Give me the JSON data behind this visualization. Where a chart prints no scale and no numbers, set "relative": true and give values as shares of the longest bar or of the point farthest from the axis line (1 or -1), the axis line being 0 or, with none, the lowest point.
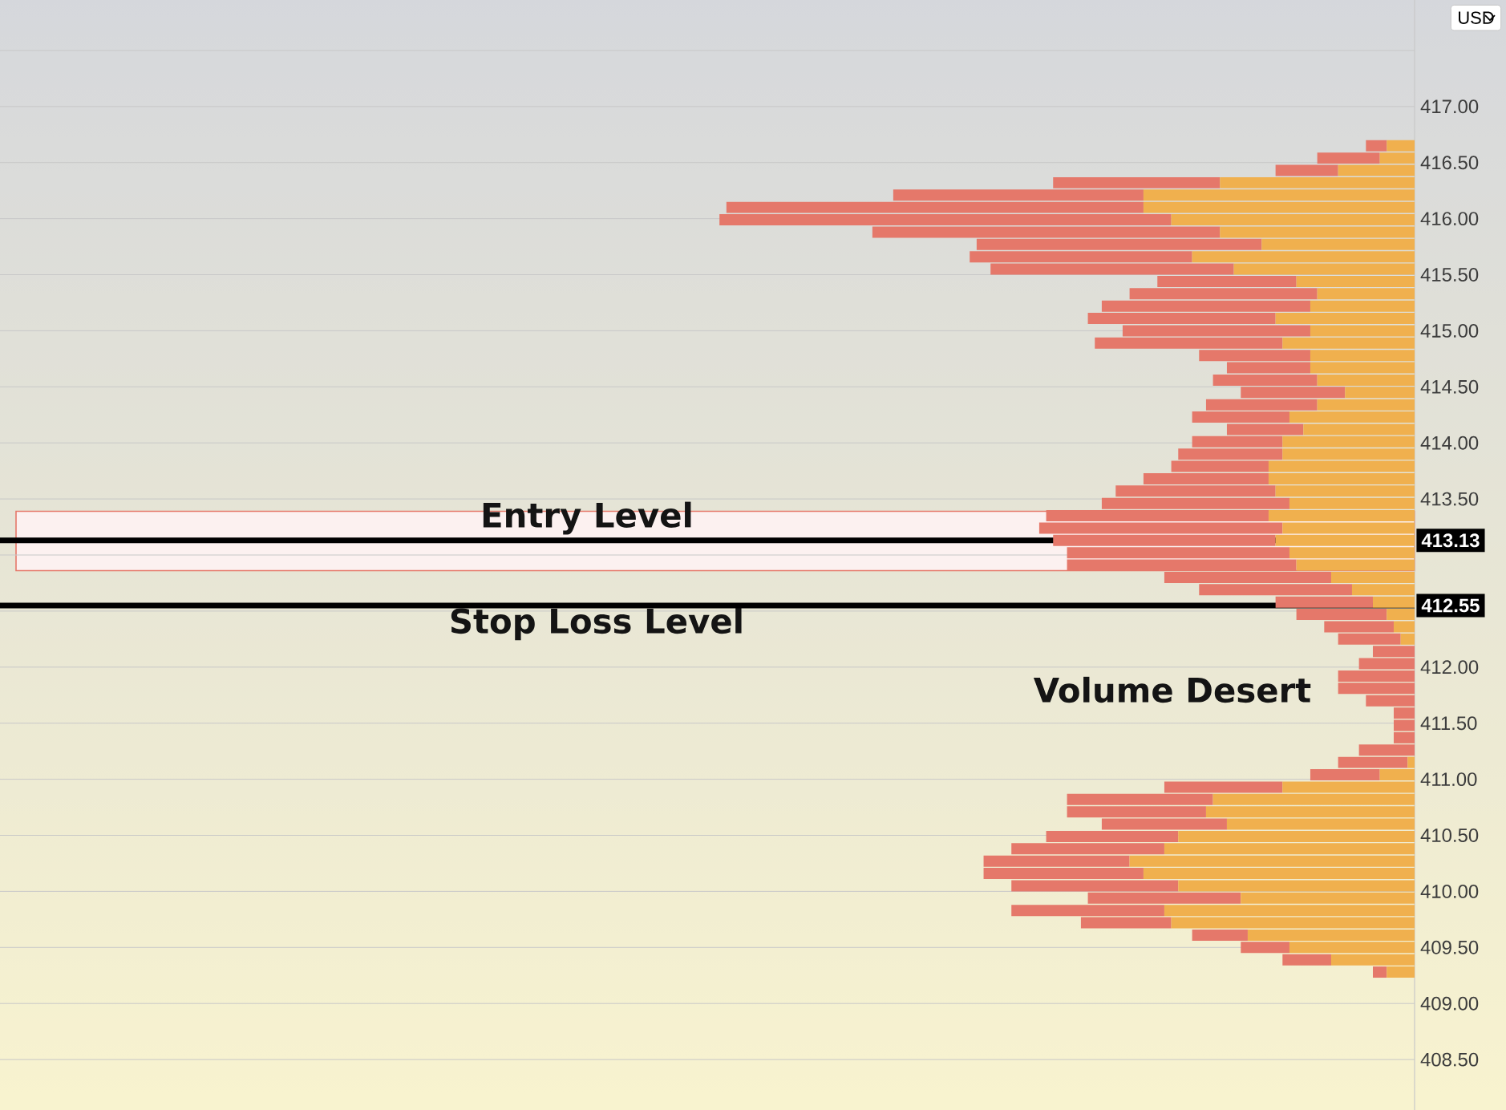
{
  "chart_data": {
    "type": "bar",
    "orientation": "horizontal",
    "stacked": true,
    "relative": true,
    "x": [
      416.65,
      416.54,
      416.43,
      416.32,
      416.21,
      416.1,
      415.99,
      415.88,
      415.77,
      415.66,
      415.55,
      415.44,
      415.33,
      415.22,
      415.11,
      415.0,
      414.89,
      414.78,
      414.67,
      414.56,
      414.45,
      414.34,
      414.23,
      414.12,
      414.01,
      413.9,
      413.79,
      413.68,
      413.57,
      413.46,
      413.35,
      413.24,
      413.13,
      413.02,
      412.91,
      412.8,
      412.69,
      412.58,
      412.47,
      412.36,
      412.25,
      412.14,
      412.03,
      411.92,
      411.81,
      411.7,
      411.59,
      411.48,
      411.37,
      411.26,
      411.15,
      411.04,
      410.93,
      410.82,
      410.71,
      410.6,
      410.49,
      410.38,
      410.27,
      410.16,
      410.05,
      409.94,
      409.83,
      409.72,
      409.61,
      409.5,
      409.39,
      409.28
    ],
    "series": [
      {
        "color": "#f0b04e",
        "values": [
          0.04,
          0.05,
          0.11,
          0.28,
          0.39,
          0.39,
          0.35,
          0.28,
          0.22,
          0.32,
          0.26,
          0.17,
          0.14,
          0.15,
          0.2,
          0.15,
          0.19,
          0.15,
          0.15,
          0.14,
          0.1,
          0.14,
          0.18,
          0.16,
          0.19,
          0.19,
          0.21,
          0.21,
          0.2,
          0.18,
          0.21,
          0.19,
          0.2,
          0.18,
          0.17,
          0.12,
          0.09,
          0.06,
          0.04,
          0.03,
          0.02,
          0,
          0,
          0,
          0,
          0,
          0,
          0,
          0,
          0,
          0.01,
          0.05,
          0.19,
          0.29,
          0.3,
          0.27,
          0.34,
          0.36,
          0.41,
          0.39,
          0.34,
          0.25,
          0.36,
          0.35,
          0.24,
          0.18,
          0.12,
          0.04
        ]
      },
      {
        "color": "#e5786a",
        "values": [
          0.03,
          0.09,
          0.09,
          0.24,
          0.36,
          0.6,
          0.65,
          0.5,
          0.41,
          0.32,
          0.35,
          0.2,
          0.27,
          0.3,
          0.27,
          0.27,
          0.27,
          0.16,
          0.12,
          0.15,
          0.15,
          0.16,
          0.14,
          0.11,
          0.13,
          0.15,
          0.14,
          0.18,
          0.23,
          0.27,
          0.32,
          0.35,
          0.32,
          0.32,
          0.33,
          0.24,
          0.22,
          0.14,
          0.13,
          0.1,
          0.09,
          0.06,
          0.08,
          0.11,
          0.11,
          0.07,
          0.03,
          0.03,
          0.03,
          0.08,
          0.1,
          0.1,
          0.17,
          0.21,
          0.2,
          0.18,
          0.19,
          0.22,
          0.21,
          0.23,
          0.24,
          0.22,
          0.22,
          0.13,
          0.08,
          0.07,
          0.07,
          0.02
        ]
      }
    ],
    "ylim": [
      408.05,
      417.95
    ],
    "yticks": [
      {
        "value": 408.5,
        "label": "408.50"
      },
      {
        "value": 409,
        "label": "409.00"
      },
      {
        "value": 409.5,
        "label": "409.50"
      },
      {
        "value": 410,
        "label": "410.00"
      },
      {
        "value": 410.5,
        "label": "410.50"
      },
      {
        "value": 411,
        "label": "411.00"
      },
      {
        "value": 411.5,
        "label": "411.50"
      },
      {
        "value": 412,
        "label": "412.00"
      },
      {
        "value": 412.5,
        "label": null
      },
      {
        "value": 413,
        "label": null
      },
      {
        "value": 413.5,
        "label": "413.50"
      },
      {
        "value": 414,
        "label": "414.00"
      },
      {
        "value": 414.5,
        "label": "414.50"
      },
      {
        "value": 415,
        "label": "415.00"
      },
      {
        "value": 415.5,
        "label": "415.50"
      },
      {
        "value": 416,
        "label": "416.00"
      },
      {
        "value": 416.5,
        "label": "416.50"
      },
      {
        "value": 417,
        "label": "417.00"
      },
      {
        "value": 417.5,
        "label": null
      }
    ],
    "grid": "y",
    "tick_labels": "y",
    "ref_lines": [
      {
        "axis": "y",
        "value": 413.13,
        "label": "413.13",
        "color": "#000000"
      },
      {
        "axis": "y",
        "value": 412.55,
        "label": "412.55",
        "color": "#000000"
      }
    ],
    "bands": [
      {
        "axis": "y",
        "from": 412.86,
        "to": 413.39,
        "color": "#e5786a"
      }
    ],
    "annotations": [
      "Entry Level",
      "Stop Loss Level",
      "Volume Desert",
      "USD"
    ]
  }
}
